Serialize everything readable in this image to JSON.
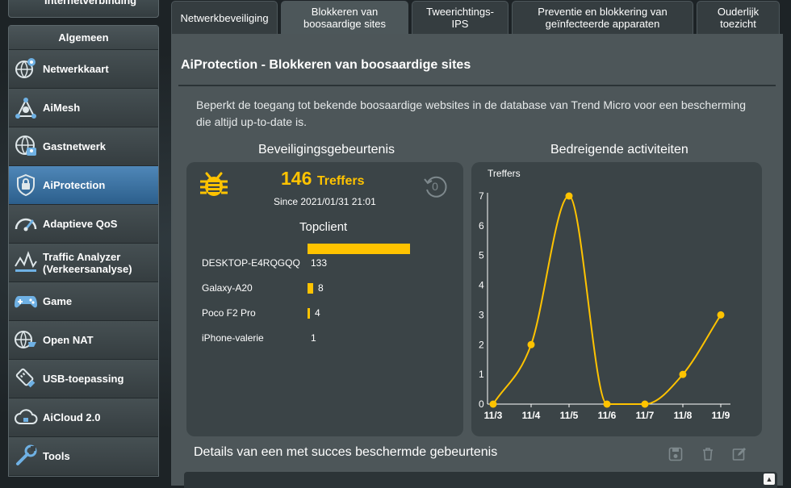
{
  "sidebar": {
    "top_stub": "Internetverbinding",
    "header": "Algemeen",
    "items": [
      {
        "label": "Netwerkkaart",
        "icon": "network-map-icon"
      },
      {
        "label": "AiMesh",
        "icon": "aimesh-icon"
      },
      {
        "label": "Gastnetwerk",
        "icon": "guest-network-icon"
      },
      {
        "label": "AiProtection",
        "icon": "shield-lock-icon",
        "active": true
      },
      {
        "label": "Adaptieve QoS",
        "icon": "speedometer-icon"
      },
      {
        "label": "Traffic Analyzer (Verkeersanalyse)",
        "icon": "traffic-analyzer-icon"
      },
      {
        "label": "Game",
        "icon": "gamepad-icon"
      },
      {
        "label": "Open NAT",
        "icon": "open-nat-icon"
      },
      {
        "label": "USB-toepassing",
        "icon": "usb-icon"
      },
      {
        "label": "AiCloud 2.0",
        "icon": "cloud-icon"
      },
      {
        "label": "Tools",
        "icon": "wrench-icon"
      }
    ]
  },
  "tabs": [
    {
      "label": "Netwerkbeveiliging"
    },
    {
      "label": "Blokkeren van boosaardige sites",
      "active": true
    },
    {
      "label": "Tweerichtings-IPS"
    },
    {
      "label": "Preventie en blokkering van geïnfecteerde apparaten"
    },
    {
      "label": "Ouderlijk toezicht"
    }
  ],
  "page": {
    "title": "AiProtection - Blokkeren van boosaardige sites",
    "description": "Beperkt de toegang tot bekende boosaardige websites in de database van Trend Micro voor een bescherming die altijd up-to-date is."
  },
  "security_events": {
    "section_title": "Beveiligingsgebeurtenis",
    "hits_count": "146",
    "hits_unit": "Treffers",
    "since": "Since 2021/01/31 21:01",
    "topclient_title": "Topclient",
    "clients": [
      {
        "name": "",
        "count": "146",
        "value": 146
      },
      {
        "name": "DESKTOP-E4RQGQQ",
        "count": "133",
        "value": 133
      },
      {
        "name": "Galaxy-A20",
        "count": "8",
        "value": 8
      },
      {
        "name": "Poco F2 Pro",
        "count": "4",
        "value": 4
      },
      {
        "name": "iPhone-valerie",
        "count": "1",
        "value": 1
      }
    ],
    "bug_icon": "bug-icon",
    "reset_icon": "reset-counter-icon",
    "accent": "#ffc300"
  },
  "threat_activity": {
    "section_title": "Bedreigende activiteiten"
  },
  "chart_data": {
    "type": "line",
    "title": "",
    "ylabel": "Treffers",
    "xlabel": "",
    "categories": [
      "11/3",
      "11/4",
      "11/5",
      "11/6",
      "11/7",
      "11/8",
      "11/9"
    ],
    "values": [
      0,
      2,
      7,
      0,
      0,
      1,
      3
    ],
    "yticks": [
      "0",
      "1",
      "2",
      "3",
      "4",
      "5",
      "6",
      "7"
    ],
    "ylim": [
      0,
      7
    ],
    "color": "#ffc300",
    "smooth": true,
    "grid": false
  },
  "details": {
    "title": "Details van een met succes beschermde gebeurtenis",
    "save_icon": "save-icon",
    "delete_icon": "trash-icon",
    "edit_icon": "edit-icon",
    "scroll_glyph": "▲"
  }
}
